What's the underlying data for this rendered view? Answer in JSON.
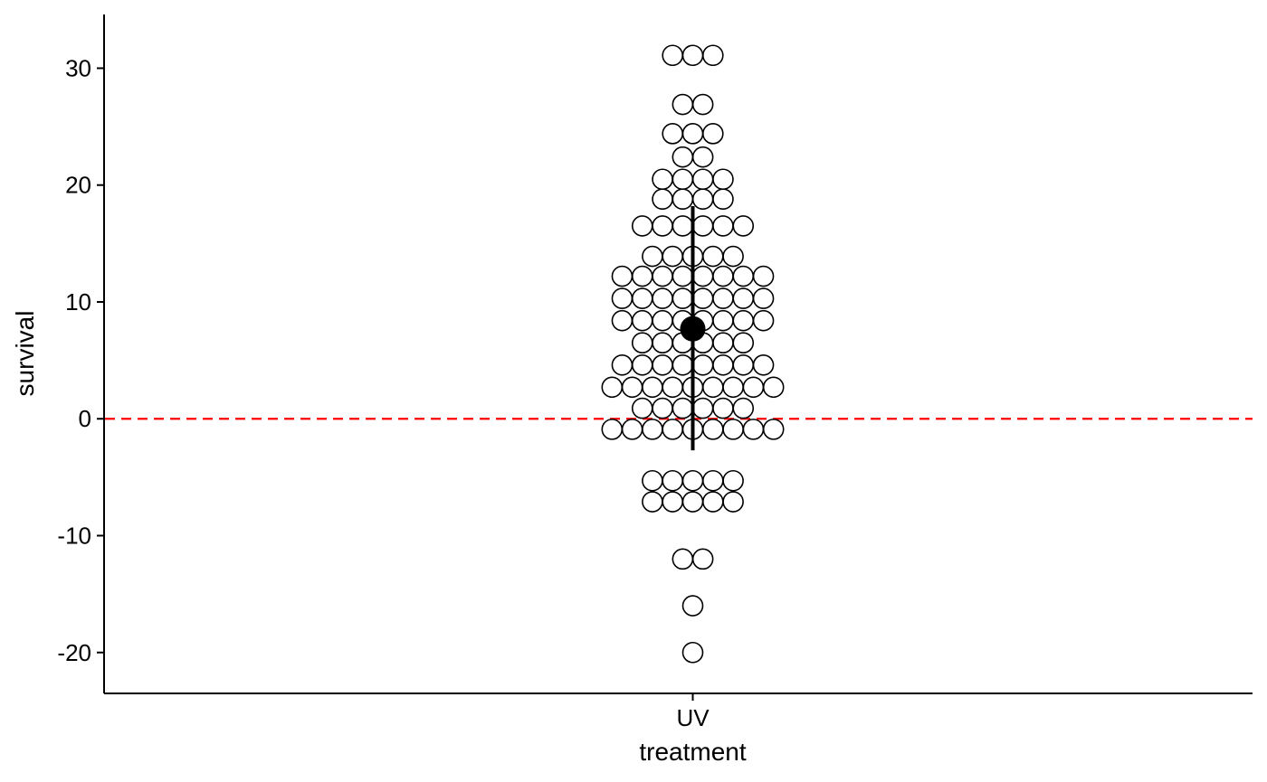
{
  "chart_data": {
    "type": "dotplot",
    "xlabel": "treatment",
    "ylabel": "survival",
    "categories": [
      "UV"
    ],
    "ylim": [
      -23.5,
      34.6
    ],
    "yticks": [
      -20,
      -10,
      0,
      10,
      20,
      30
    ],
    "ytick_labels": [
      "-20",
      "-10",
      "0",
      "10",
      "20",
      "30"
    ],
    "grid": false,
    "reference_line": {
      "y": 0,
      "color": "#ff0000",
      "style": "dashed"
    },
    "summary": {
      "mean": 7.7,
      "low": -2.7,
      "high": 18.2,
      "color": "#000000"
    },
    "dot_rows": [
      {
        "y": 31.1,
        "count": 3
      },
      {
        "y": 26.9,
        "count": 2
      },
      {
        "y": 24.4,
        "count": 3
      },
      {
        "y": 22.4,
        "count": 2
      },
      {
        "y": 20.5,
        "count": 4
      },
      {
        "y": 18.8,
        "count": 4
      },
      {
        "y": 16.5,
        "count": 6
      },
      {
        "y": 13.9,
        "count": 5
      },
      {
        "y": 12.2,
        "count": 8
      },
      {
        "y": 10.3,
        "count": 8
      },
      {
        "y": 8.4,
        "count": 8
      },
      {
        "y": 6.5,
        "count": 6
      },
      {
        "y": 4.6,
        "count": 8
      },
      {
        "y": 2.7,
        "count": 9
      },
      {
        "y": 0.9,
        "count": 6
      },
      {
        "y": -0.9,
        "count": 9
      },
      {
        "y": -5.3,
        "count": 5
      },
      {
        "y": -7.1,
        "count": 5
      },
      {
        "y": -12.0,
        "count": 2
      },
      {
        "y": -16.0,
        "count": 1
      },
      {
        "y": -20.0,
        "count": 1
      }
    ],
    "dot_fill": "#ffffff",
    "dot_stroke": "#000000"
  }
}
